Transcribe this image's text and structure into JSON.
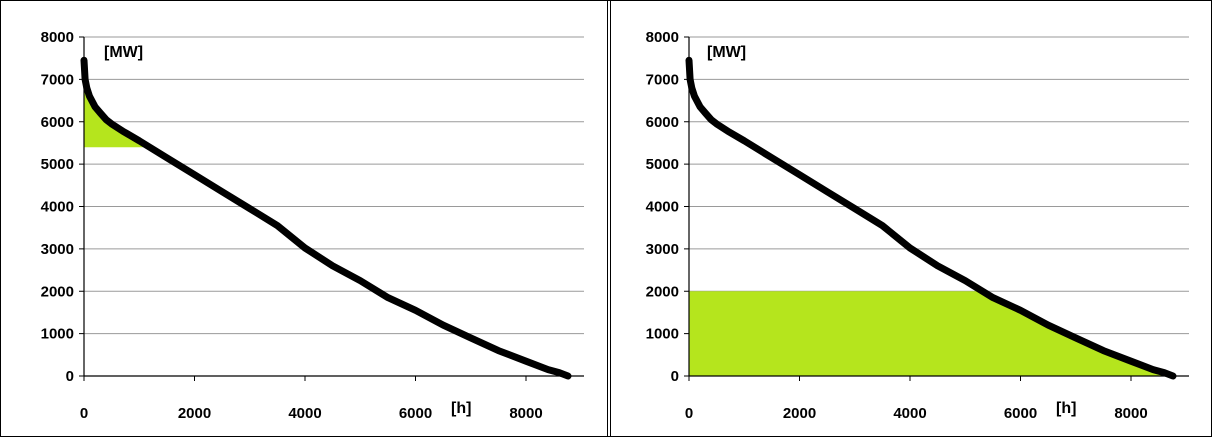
{
  "chart_data": [
    {
      "type": "area",
      "title": "",
      "xlabel": "[h]",
      "ylabel": "[MW]",
      "xlim": [
        0,
        8760
      ],
      "ylim": [
        0,
        8000
      ],
      "x_ticks": [
        "0",
        "2000",
        "4000",
        "6000",
        "8000"
      ],
      "y_ticks": [
        "0",
        "1000",
        "2000",
        "3000",
        "4000",
        "5000",
        "6000",
        "7000",
        "8000"
      ],
      "grid": "horizontal",
      "legend": "none",
      "curve_color": "#000000",
      "fill_color": "#b5e51d",
      "series": [
        {
          "x": [
            0,
            20,
            50,
            100,
            200,
            300,
            400,
            500,
            700,
            1000,
            1500,
            2000,
            2500,
            3000,
            3500,
            4000,
            4500,
            5000,
            5500,
            6000,
            6500,
            7000,
            7500,
            8000,
            8400,
            8600,
            8760
          ],
          "y": [
            7450,
            7000,
            6800,
            6600,
            6350,
            6200,
            6050,
            5950,
            5780,
            5550,
            5150,
            4750,
            4350,
            3950,
            3550,
            3020,
            2600,
            2250,
            1850,
            1550,
            1200,
            900,
            600,
            350,
            150,
            80,
            0
          ]
        }
      ],
      "shaded_region": {
        "x": [
          0,
          8760
        ],
        "y_from": 5400,
        "y_to": "curve"
      }
    },
    {
      "type": "area",
      "title": "",
      "xlabel": "[h]",
      "ylabel": "[MW]",
      "xlim": [
        0,
        8760
      ],
      "ylim": [
        0,
        8000
      ],
      "x_ticks": [
        "0",
        "2000",
        "4000",
        "6000",
        "8000"
      ],
      "y_ticks": [
        "0",
        "1000",
        "2000",
        "3000",
        "4000",
        "5000",
        "6000",
        "7000",
        "8000"
      ],
      "grid": "horizontal",
      "legend": "none",
      "curve_color": "#000000",
      "fill_color": "#b5e51d",
      "series": [
        {
          "x": [
            0,
            20,
            50,
            100,
            200,
            300,
            400,
            500,
            700,
            1000,
            1500,
            2000,
            2500,
            3000,
            3500,
            4000,
            4500,
            5000,
            5500,
            6000,
            6500,
            7000,
            7500,
            8000,
            8400,
            8600,
            8760
          ],
          "y": [
            7450,
            7000,
            6800,
            6600,
            6350,
            6200,
            6050,
            5950,
            5780,
            5550,
            5150,
            4750,
            4350,
            3950,
            3550,
            3020,
            2600,
            2250,
            1850,
            1550,
            1200,
            900,
            600,
            350,
            150,
            80,
            0
          ]
        }
      ],
      "shaded_region": {
        "x": [
          0,
          8760
        ],
        "y_from": 0,
        "y_to": "min(curve, 2000)"
      }
    }
  ]
}
